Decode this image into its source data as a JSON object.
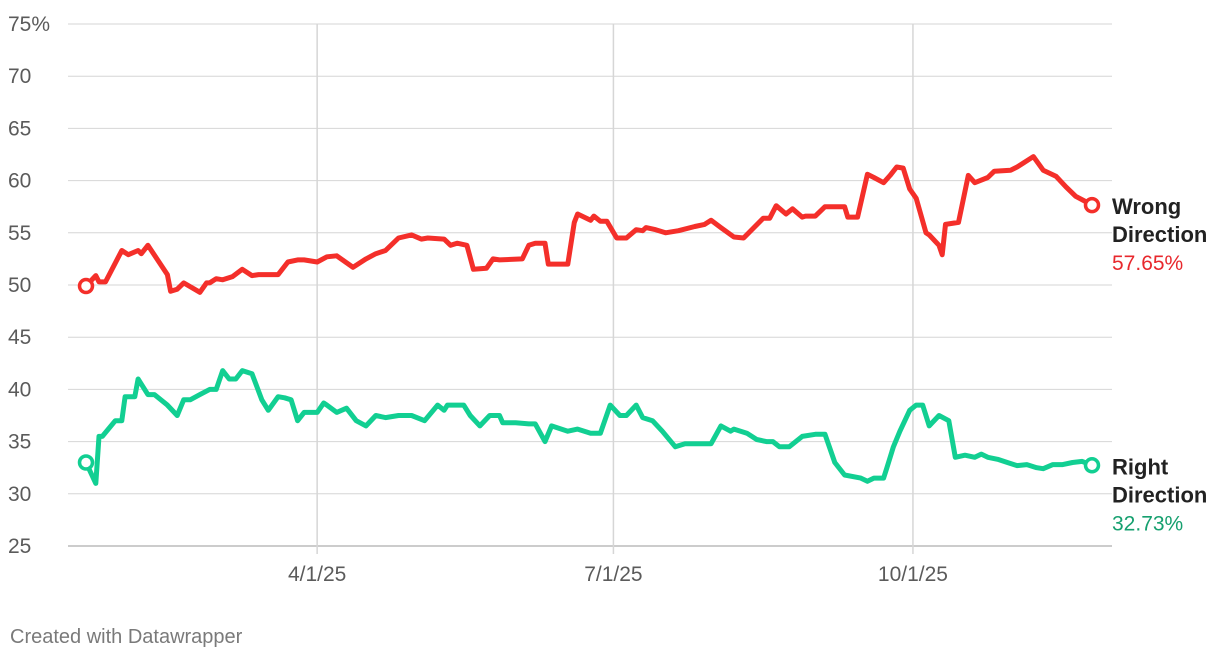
{
  "chart_data": {
    "type": "line",
    "title": "",
    "xlabel": "",
    "ylabel": "",
    "ylim": [
      25,
      75
    ],
    "yticks": [
      25,
      30,
      35,
      40,
      45,
      50,
      55,
      60,
      65,
      70,
      75
    ],
    "ytick_labels": [
      "25",
      "30",
      "35",
      "40",
      "45",
      "50",
      "55",
      "60",
      "65",
      "70",
      "75%"
    ],
    "xticks": [
      {
        "date": "2025-04-01",
        "label": "4/1/25"
      },
      {
        "date": "2025-07-01",
        "label": "7/1/25"
      },
      {
        "date": "2025-10-01",
        "label": "10/1/25"
      }
    ],
    "grid": true,
    "legend": "direct labels at line ends",
    "series": [
      {
        "name": "Wrong Direction",
        "name_lines": [
          "Wrong",
          "Direction"
        ],
        "end_label": "57.65%",
        "color": "#f42f2a",
        "label_color": "#e8282d",
        "x": [
          "2025-01-20",
          "2025-01-23",
          "2025-01-24",
          "2025-01-26",
          "2025-01-31",
          "2025-02-02",
          "2025-02-05",
          "2025-02-06",
          "2025-02-08",
          "2025-02-14",
          "2025-02-15",
          "2025-02-17",
          "2025-02-19",
          "2025-02-24",
          "2025-02-26",
          "2025-02-27",
          "2025-03-01",
          "2025-03-03",
          "2025-03-06",
          "2025-03-09",
          "2025-03-12",
          "2025-03-14",
          "2025-03-20",
          "2025-03-23",
          "2025-03-26",
          "2025-03-28",
          "2025-04-01",
          "2025-04-04",
          "2025-04-07",
          "2025-04-12",
          "2025-04-16",
          "2025-04-19",
          "2025-04-22",
          "2025-04-26",
          "2025-04-30",
          "2025-05-03",
          "2025-05-05",
          "2025-05-10",
          "2025-05-12",
          "2025-05-14",
          "2025-05-17",
          "2025-05-19",
          "2025-05-23",
          "2025-05-25",
          "2025-05-27",
          "2025-06-03",
          "2025-06-05",
          "2025-06-07",
          "2025-06-10",
          "2025-06-11",
          "2025-06-17",
          "2025-06-19",
          "2025-06-20",
          "2025-06-24",
          "2025-06-25",
          "2025-06-27",
          "2025-06-29",
          "2025-07-02",
          "2025-07-05",
          "2025-07-08",
          "2025-07-10",
          "2025-07-11",
          "2025-07-14",
          "2025-07-17",
          "2025-07-21",
          "2025-07-26",
          "2025-07-29",
          "2025-07-31",
          "2025-08-03",
          "2025-08-07",
          "2025-08-10",
          "2025-08-16",
          "2025-08-18",
          "2025-08-20",
          "2025-08-23",
          "2025-08-25",
          "2025-08-28",
          "2025-08-29",
          "2025-09-01",
          "2025-09-04",
          "2025-09-07",
          "2025-09-08",
          "2025-09-10",
          "2025-09-11",
          "2025-09-14",
          "2025-09-17",
          "2025-09-19",
          "2025-09-22",
          "2025-09-24",
          "2025-09-26",
          "2025-09-28",
          "2025-09-30",
          "2025-10-02",
          "2025-10-05",
          "2025-10-06",
          "2025-10-09",
          "2025-10-10",
          "2025-10-11",
          "2025-10-15",
          "2025-10-18",
          "2025-10-20",
          "2025-10-24",
          "2025-10-26",
          "2025-10-31",
          "2025-11-02",
          "2025-11-04",
          "2025-11-06",
          "2025-11-07",
          "2025-11-10",
          "2025-11-14",
          "2025-11-17",
          "2025-11-20",
          "2025-11-23",
          "2025-11-25"
        ],
        "values": [
          49.9,
          50.9,
          50.3,
          50.3,
          53.3,
          52.9,
          53.3,
          53.0,
          53.8,
          51.0,
          49.4,
          49.6,
          50.2,
          49.3,
          50.2,
          50.2,
          50.6,
          50.5,
          50.8,
          51.5,
          50.9,
          51.0,
          51.0,
          52.2,
          52.4,
          52.4,
          52.2,
          52.7,
          52.8,
          51.7,
          52.5,
          53.0,
          53.3,
          54.5,
          54.8,
          54.4,
          54.5,
          54.4,
          53.8,
          54.0,
          53.8,
          51.5,
          51.6,
          52.5,
          52.4,
          52.5,
          53.8,
          54.0,
          54.0,
          52.0,
          52.0,
          56.0,
          56.8,
          56.2,
          56.6,
          56.1,
          56.1,
          54.5,
          54.5,
          55.3,
          55.2,
          55.5,
          55.3,
          55.0,
          55.2,
          55.6,
          55.8,
          56.2,
          55.5,
          54.6,
          54.5,
          56.4,
          56.4,
          57.6,
          56.8,
          57.3,
          56.5,
          56.6,
          56.6,
          57.5,
          57.5,
          57.5,
          57.5,
          56.5,
          56.5,
          60.6,
          60.3,
          59.8,
          60.5,
          61.3,
          61.2,
          59.2,
          58.3,
          55.0,
          54.8,
          53.8,
          52.9,
          55.8,
          56.0,
          60.5,
          59.8,
          60.3,
          60.9,
          61.0,
          61.3,
          61.7,
          62.1,
          62.3,
          61.0,
          60.4,
          59.4,
          58.5,
          58.0,
          57.65
        ]
      },
      {
        "name": "Right Direction",
        "name_lines": [
          "Right",
          "Direction"
        ],
        "end_label": "32.73%",
        "color": "#12cf92",
        "label_color": "#16a06f",
        "x": [
          "2025-01-20",
          "2025-01-23",
          "2025-01-24",
          "2025-01-25",
          "2025-01-29",
          "2025-01-31",
          "2025-02-01",
          "2025-02-04",
          "2025-02-05",
          "2025-02-08",
          "2025-02-10",
          "2025-02-12",
          "2025-02-14",
          "2025-02-17",
          "2025-02-19",
          "2025-02-21",
          "2025-02-24",
          "2025-02-27",
          "2025-03-01",
          "2025-03-03",
          "2025-03-05",
          "2025-03-07",
          "2025-03-09",
          "2025-03-12",
          "2025-03-15",
          "2025-03-17",
          "2025-03-20",
          "2025-03-22",
          "2025-03-24",
          "2025-03-26",
          "2025-03-28",
          "2025-04-01",
          "2025-04-03",
          "2025-04-04",
          "2025-04-07",
          "2025-04-10",
          "2025-04-13",
          "2025-04-16",
          "2025-04-19",
          "2025-04-22",
          "2025-04-26",
          "2025-04-30",
          "2025-05-04",
          "2025-05-08",
          "2025-05-10",
          "2025-05-11",
          "2025-05-13",
          "2025-05-16",
          "2025-05-18",
          "2025-05-21",
          "2025-05-24",
          "2025-05-27",
          "2025-05-28",
          "2025-06-01",
          "2025-06-05",
          "2025-06-07",
          "2025-06-10",
          "2025-06-12",
          "2025-06-17",
          "2025-06-20",
          "2025-06-24",
          "2025-06-27",
          "2025-06-30",
          "2025-07-03",
          "2025-07-05",
          "2025-07-08",
          "2025-07-10",
          "2025-07-13",
          "2025-07-16",
          "2025-07-20",
          "2025-07-23",
          "2025-07-26",
          "2025-07-29",
          "2025-07-31",
          "2025-08-03",
          "2025-08-06",
          "2025-08-07",
          "2025-08-11",
          "2025-08-14",
          "2025-08-17",
          "2025-08-19",
          "2025-08-21",
          "2025-08-24",
          "2025-08-28",
          "2025-09-01",
          "2025-09-04",
          "2025-09-07",
          "2025-09-10",
          "2025-09-15",
          "2025-09-17",
          "2025-09-19",
          "2025-09-22",
          "2025-09-23",
          "2025-09-25",
          "2025-09-27",
          "2025-09-30",
          "2025-10-02",
          "2025-10-04",
          "2025-10-06",
          "2025-10-09",
          "2025-10-12",
          "2025-10-14",
          "2025-10-17",
          "2025-10-20",
          "2025-10-22",
          "2025-10-24",
          "2025-10-27",
          "2025-10-30",
          "2025-11-02",
          "2025-11-05",
          "2025-11-08",
          "2025-11-10",
          "2025-11-13",
          "2025-11-16",
          "2025-11-19",
          "2025-11-22",
          "2025-11-25"
        ],
        "values": [
          33.0,
          31.0,
          35.5,
          35.5,
          37.0,
          37.0,
          39.3,
          39.3,
          41.0,
          39.5,
          39.5,
          39.0,
          38.5,
          37.5,
          39.0,
          39.0,
          39.5,
          40.0,
          40.0,
          41.8,
          41.0,
          41.0,
          41.8,
          41.5,
          39.0,
          38.0,
          39.3,
          39.2,
          39.0,
          37.0,
          37.8,
          37.8,
          38.7,
          38.5,
          37.8,
          38.2,
          37.0,
          36.5,
          37.5,
          37.3,
          37.5,
          37.5,
          37.0,
          38.5,
          38.0,
          38.5,
          38.5,
          38.5,
          37.5,
          36.5,
          37.5,
          37.5,
          36.8,
          36.8,
          36.7,
          36.7,
          35.0,
          36.5,
          36.0,
          36.2,
          35.8,
          35.8,
          38.5,
          37.5,
          37.5,
          38.5,
          37.3,
          37.0,
          36.0,
          34.5,
          34.8,
          34.8,
          34.8,
          34.8,
          36.5,
          36.0,
          36.2,
          35.8,
          35.2,
          35.0,
          35.0,
          34.5,
          34.5,
          35.5,
          35.7,
          35.7,
          33.0,
          31.8,
          31.5,
          31.2,
          31.5,
          31.5,
          32.5,
          34.5,
          36.0,
          38.0,
          38.5,
          38.5,
          36.5,
          37.5,
          37.0,
          33.5,
          33.7,
          33.5,
          33.8,
          33.5,
          33.3,
          33.0,
          32.7,
          32.8,
          32.5,
          32.4,
          32.8,
          32.8,
          33.0,
          33.1,
          32.73
        ]
      }
    ]
  },
  "footer": {
    "credit": "Created with Datawrapper"
  }
}
